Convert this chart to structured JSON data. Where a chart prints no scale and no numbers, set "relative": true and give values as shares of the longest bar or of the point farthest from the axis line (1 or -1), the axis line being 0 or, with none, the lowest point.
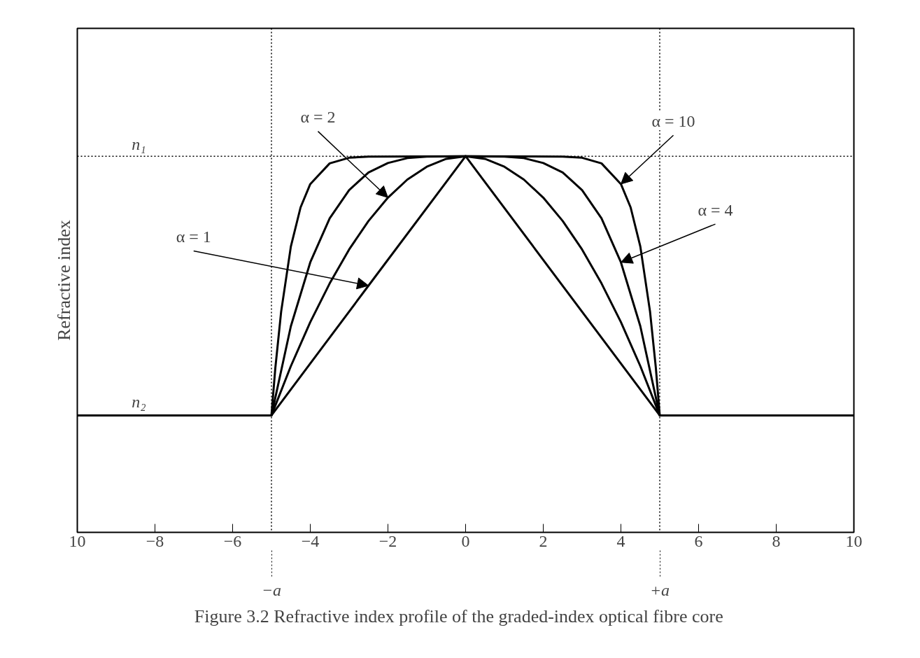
{
  "chart_data": {
    "type": "line",
    "relative": true,
    "title": "Figure 3.2    Refractive index profile of the graded-index optical fibre core",
    "ylabel": "Refractive index",
    "xlim": [
      -10,
      10
    ],
    "xticks": [
      {
        "value": -10,
        "label": "10"
      },
      {
        "value": -8,
        "label": "−8"
      },
      {
        "value": -6,
        "label": "−6"
      },
      {
        "value": -4,
        "label": "−4"
      },
      {
        "value": -2,
        "label": "−2"
      },
      0,
      2,
      4,
      6,
      8,
      10
    ],
    "series": [
      {
        "color": "#000000",
        "x": [
          -10,
          -5,
          -2.5,
          0,
          5,
          10
        ],
        "values": [
          0.311,
          0.311,
          0.656,
          1.0,
          0.311,
          0.311
        ]
      },
      {
        "color": "#000000",
        "x": [
          -10,
          -5,
          -4.5,
          -4,
          -3.5,
          -3,
          -2.5,
          -2,
          -1.5,
          -1,
          -0.5,
          0,
          0.5,
          1,
          1.5,
          2,
          2.5,
          3,
          3.5,
          4,
          4.5,
          5,
          10
        ],
        "values": [
          0.311,
          0.311,
          0.442,
          0.559,
          0.662,
          0.752,
          0.828,
          0.89,
          0.938,
          0.972,
          0.993,
          1.0,
          0.993,
          0.972,
          0.938,
          0.89,
          0.828,
          0.752,
          0.662,
          0.559,
          0.442,
          0.311,
          0.311
        ]
      },
      {
        "color": "#000000",
        "x": [
          -10,
          -5,
          -4.5,
          -4,
          -3.5,
          -3,
          -2.5,
          -2,
          -1.5,
          -1,
          0,
          1,
          1.5,
          2,
          2.5,
          3,
          3.5,
          4,
          4.5,
          5,
          10
        ],
        "values": [
          0.311,
          0.311,
          0.548,
          0.718,
          0.835,
          0.91,
          0.957,
          0.982,
          0.995,
          0.999,
          1.0,
          0.999,
          0.995,
          0.982,
          0.957,
          0.91,
          0.835,
          0.718,
          0.548,
          0.311,
          0.311
        ]
      },
      {
        "color": "#000000",
        "x": [
          -10,
          -5,
          -4.9,
          -4.75,
          -4.5,
          -4.25,
          -4,
          -3.5,
          -3,
          -2.5,
          0,
          2.5,
          3,
          3.5,
          4,
          4.25,
          4.5,
          4.75,
          4.9,
          5,
          10
        ],
        "values": [
          0.311,
          0.311,
          0.437,
          0.587,
          0.76,
          0.864,
          0.926,
          0.981,
          0.996,
          0.999,
          1.0,
          0.999,
          0.996,
          0.981,
          0.926,
          0.864,
          0.76,
          0.587,
          0.437,
          0.311,
          0.311
        ]
      }
    ],
    "ref_lines": [
      {
        "axis": "y",
        "value": 1.0,
        "label": "n₁",
        "line_style": "dotted"
      },
      {
        "axis": "x",
        "value": -5,
        "label": "−a",
        "line_style": "dotted"
      },
      {
        "axis": "x",
        "value": 5,
        "label": "+a",
        "line_style": "dotted"
      }
    ],
    "annotations": [
      {
        "text": "α = 2",
        "x": -2,
        "y": 0.89
      },
      {
        "text": "α = 10",
        "x": 4,
        "y": 0.926
      },
      {
        "text": "α = 4",
        "x": 4,
        "y": 0.718
      },
      {
        "text": "α = 1",
        "x": -2.5,
        "y": 0.656
      },
      {
        "text": "n₂",
        "x": -8.6,
        "y": 0.311
      }
    ],
    "grid": false,
    "line_style": "solid"
  }
}
